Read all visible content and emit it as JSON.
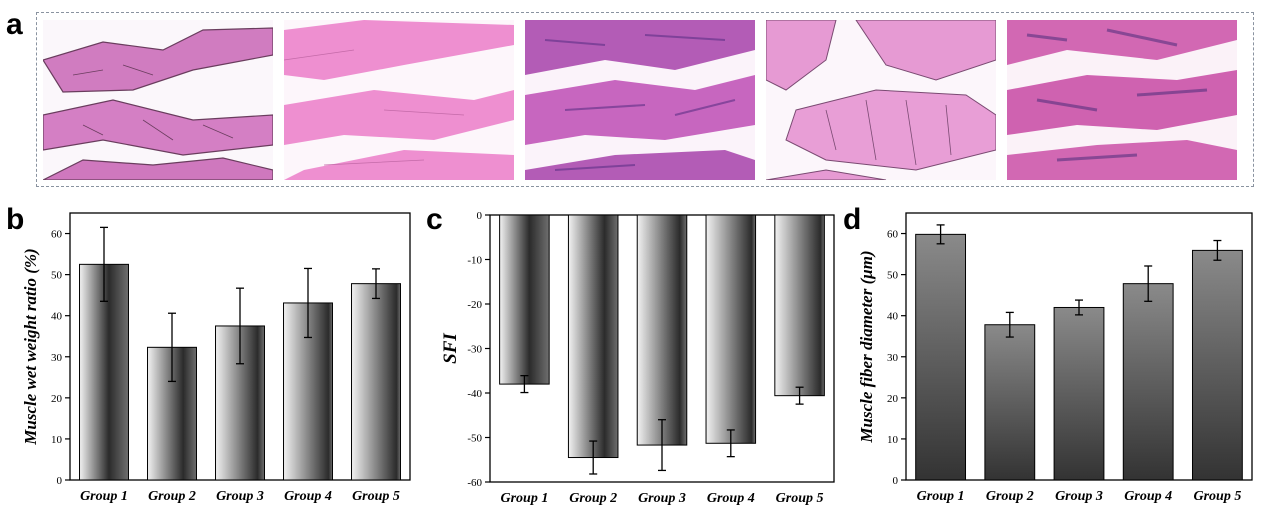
{
  "panels": {
    "a": "a",
    "b": "b",
    "c": "c",
    "d": "d"
  },
  "micrographs": [
    {
      "style": "fibers with cell walls"
    },
    {
      "style": "pale elongated fibers"
    },
    {
      "style": "dense purple stained fibers"
    },
    {
      "style": "fibers with cell walls"
    },
    {
      "style": "dense dark stained fibers"
    }
  ],
  "colors": {
    "stain_pink": "#e46fbf",
    "stain_pale": "#ee8fd0",
    "stain_purple": "#9a4fb0",
    "frame": "#8a93a0",
    "bar_dark": "#3f3f3f",
    "bar_light": "#e8e8e8"
  },
  "chart_data": [
    {
      "id": "b",
      "type": "bar",
      "categories": [
        "Group 1",
        "Group 2",
        "Group 3",
        "Group 4",
        "Group 5"
      ],
      "values": [
        52.5,
        32.3,
        37.5,
        43.1,
        47.8
      ],
      "errors": [
        9.0,
        8.3,
        9.2,
        8.4,
        3.6
      ],
      "ylabel": "Muscle wet weight ratio (%)",
      "ylim": [
        0,
        65
      ],
      "yticks": [
        "0",
        "10",
        "20",
        "30",
        "40",
        "50",
        "60"
      ],
      "fill": "horizontal-gradient"
    },
    {
      "id": "c",
      "type": "bar",
      "categories": [
        "Group 1",
        "Group 2",
        "Group 3",
        "Group 4",
        "Group 5"
      ],
      "values": [
        -38.0,
        -54.5,
        -51.7,
        -51.3,
        -40.6
      ],
      "errors": [
        1.9,
        3.7,
        5.7,
        3.0,
        1.9
      ],
      "ylabel": "SFI",
      "ylim": [
        -60,
        0
      ],
      "yticks": [
        "0",
        "-10",
        "-20",
        "-30",
        "-40",
        "-50",
        "-60"
      ],
      "fill": "horizontal-gradient"
    },
    {
      "id": "d",
      "type": "bar",
      "categories": [
        "Group 1",
        "Group 2",
        "Group 3",
        "Group 4",
        "Group 5"
      ],
      "values": [
        59.8,
        37.8,
        42.0,
        47.8,
        55.9
      ],
      "errors": [
        2.3,
        3.0,
        1.8,
        4.3,
        2.4
      ],
      "ylabel": "Muscle fiber diameter (μm)",
      "ylim": [
        0,
        65
      ],
      "yticks": [
        "0",
        "10",
        "20",
        "30",
        "40",
        "50",
        "60"
      ],
      "fill": "vertical-gradient"
    }
  ]
}
